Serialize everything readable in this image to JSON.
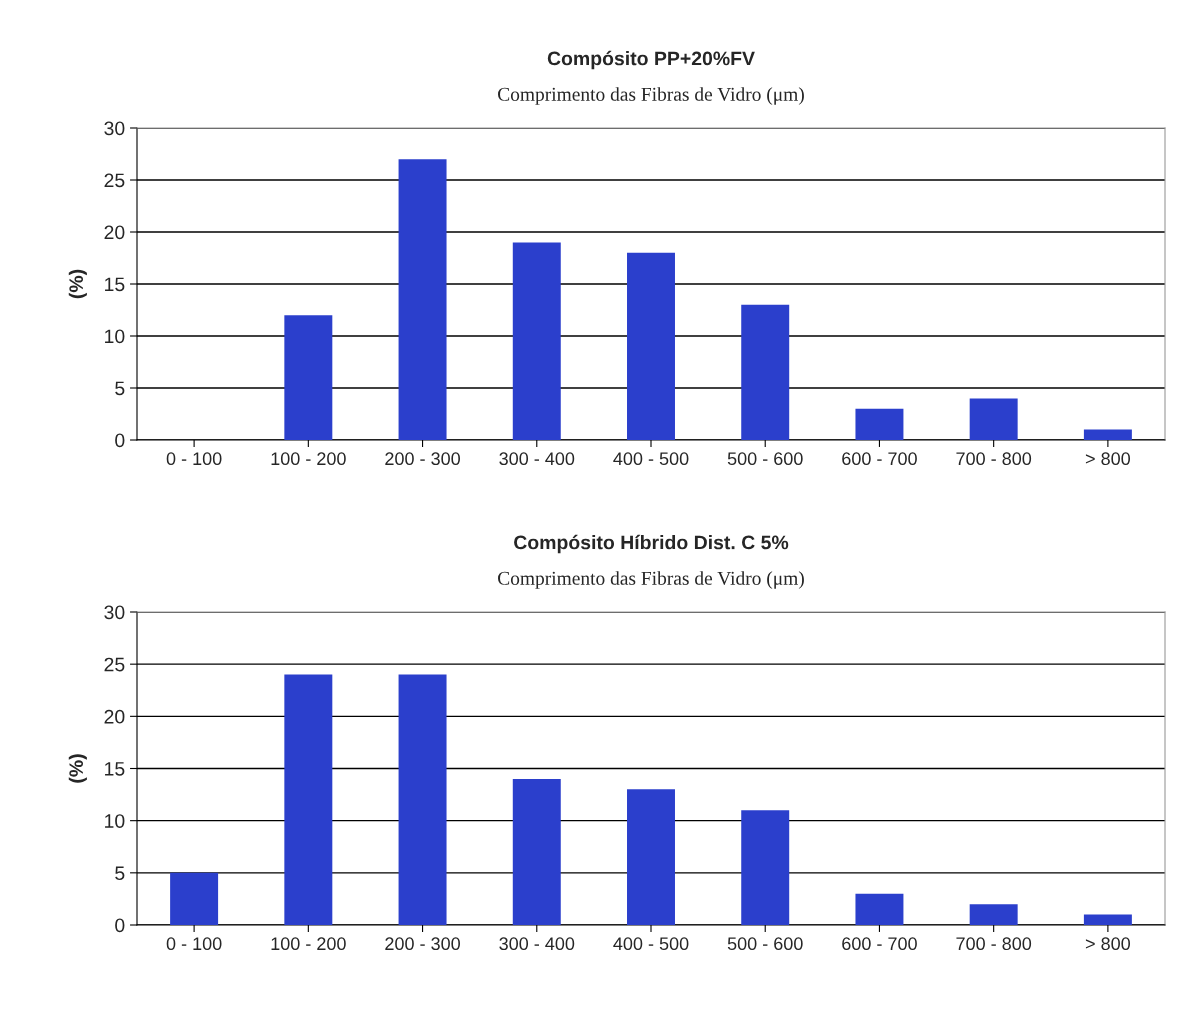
{
  "chart_data": [
    {
      "type": "bar",
      "title": "Compósito PP+20%FV",
      "subtitle": "Comprimento das Fibras de Vidro (μm)",
      "ylabel": "(%)",
      "categories": [
        "0 - 100",
        "100 - 200",
        "200 - 300",
        "300 - 400",
        "400 - 500",
        "500 - 600",
        "600 - 700",
        "700 - 800",
        "> 800"
      ],
      "values": [
        0,
        12,
        27,
        19,
        18,
        13,
        3,
        4,
        1
      ],
      "color": "#2b3fcc",
      "ylim": [
        0,
        30
      ],
      "yticks": [
        0,
        5,
        10,
        15,
        20,
        25,
        30
      ],
      "grid": "y",
      "legend": false
    },
    {
      "type": "bar",
      "title": "Compósito Híbrido Dist. C 5%",
      "subtitle": "Comprimento das Fibras de Vidro (μm)",
      "ylabel": "(%)",
      "categories": [
        "0 - 100",
        "100 - 200",
        "200 - 300",
        "300 - 400",
        "400 - 500",
        "500 - 600",
        "600 - 700",
        "700 - 800",
        "> 800"
      ],
      "values": [
        5,
        24,
        24,
        14,
        13,
        11,
        3,
        2,
        1
      ],
      "color": "#2b3fcc",
      "ylim": [
        0,
        30
      ],
      "yticks": [
        0,
        5,
        10,
        15,
        20,
        25,
        30
      ],
      "grid": "y",
      "legend": false
    }
  ]
}
